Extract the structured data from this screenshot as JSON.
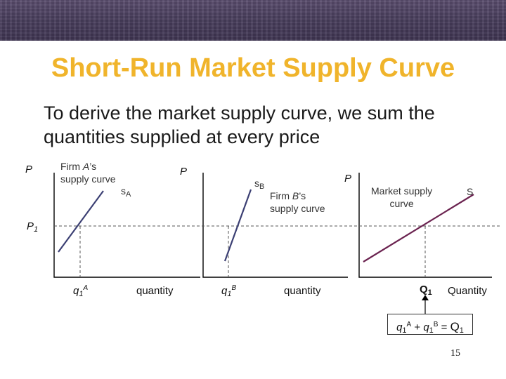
{
  "slide": {
    "title": "Short-Run Market Supply Curve",
    "subtitle": "To derive the market supply curve, we sum the quantities supplied at every price",
    "page_number": "15"
  },
  "labels": {
    "p_axis": "P",
    "p1_main": "P",
    "p1_sub": "1",
    "firm_a_line1_pre": "Firm ",
    "firm_a_line1_it": "A",
    "firm_a_line1_post": "’s",
    "firm_a_line2": "supply curve",
    "s_a_main": "s",
    "s_a_sub": "A",
    "q1a_main": "q",
    "q1a_sub": "1",
    "q1a_sup": "A",
    "quantity_a": "quantity",
    "s_b_main": "s",
    "s_b_sub": "B",
    "firm_b_line1_pre": "Firm ",
    "firm_b_line1_it": "B",
    "firm_b_line1_post": "’s",
    "firm_b_line2": "supply curve",
    "q1b_main": "q",
    "q1b_sub": "1",
    "q1b_sup": "B",
    "quantity_b": "quantity",
    "market_line1": "Market supply",
    "market_line2": "curve",
    "s_market": "S",
    "Q1_main": "Q",
    "Q1_sub": "1",
    "quantity_market": "Quantity",
    "eq_q1a": "q",
    "eq_q1a_sub": "1",
    "eq_q1a_sup": "A",
    "eq_plus": " + ",
    "eq_q1b": "q",
    "eq_q1b_sub": "1",
    "eq_q1b_sup": "B",
    "eq_equals": " = ",
    "eq_Q": "Q",
    "eq_Q_sub": "1"
  },
  "colors": {
    "title": "#f0b42b",
    "curve_a": "#3b3f73",
    "curve_b": "#3b3f73",
    "curve_market": "#6b2350"
  }
}
